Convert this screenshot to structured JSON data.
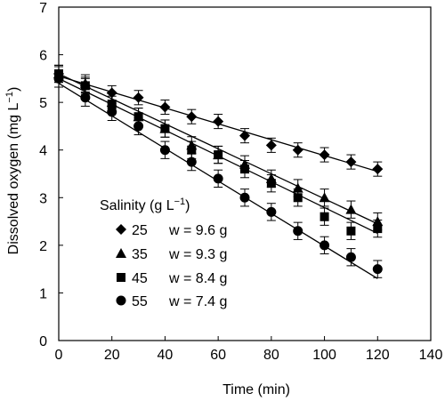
{
  "chart_data": {
    "type": "scatter",
    "xlabel": "Time (min)",
    "ylabel_main": "Dissolved oxygen (mg L",
    "ylabel_sup": "−1",
    "ylabel_tail": ")",
    "xlim": [
      0,
      140
    ],
    "ylim": [
      0,
      7
    ],
    "x_ticks": [
      "0",
      "20",
      "40",
      "60",
      "80",
      "100",
      "120",
      "140"
    ],
    "y_ticks": [
      "0",
      "1",
      "2",
      "3",
      "4",
      "5",
      "6",
      "7"
    ],
    "grid": false,
    "legend_title_main": "Salinity (g L",
    "legend_title_sup": "−1",
    "legend_title_tail": ")",
    "legend_placement": "lower-left",
    "x": [
      0,
      10,
      20,
      30,
      40,
      50,
      60,
      70,
      80,
      90,
      100,
      110,
      120
    ],
    "series": [
      {
        "name": "25",
        "weight": "w = 9.6 g",
        "marker": "diamond",
        "values": [
          5.6,
          5.35,
          5.2,
          5.1,
          4.9,
          4.7,
          4.6,
          4.3,
          4.1,
          4.0,
          3.9,
          3.75,
          3.6
        ],
        "error": 0.15,
        "fit": [
          5.55,
          3.55
        ]
      },
      {
        "name": "35",
        "weight": "w = 9.3 g",
        "marker": "triangle",
        "values": [
          5.6,
          5.4,
          5.0,
          4.7,
          4.45,
          4.1,
          3.9,
          3.7,
          3.4,
          3.2,
          3.0,
          2.75,
          2.5
        ],
        "error": 0.18,
        "fit": [
          5.6,
          2.45
        ]
      },
      {
        "name": "45",
        "weight": "w = 8.4 g",
        "marker": "square",
        "values": [
          5.6,
          5.35,
          4.95,
          4.7,
          4.45,
          4.0,
          3.9,
          3.6,
          3.3,
          3.0,
          2.6,
          2.3,
          2.35
        ],
        "error": 0.18,
        "fit": [
          5.5,
          2.25
        ]
      },
      {
        "name": "55",
        "weight": "w = 7.4 g",
        "marker": "circle",
        "values": [
          5.5,
          5.1,
          4.8,
          4.5,
          4.0,
          3.75,
          3.4,
          3.0,
          2.7,
          2.3,
          2.0,
          1.75,
          1.5
        ],
        "error": 0.18,
        "fit": [
          5.4,
          1.3
        ]
      }
    ]
  }
}
